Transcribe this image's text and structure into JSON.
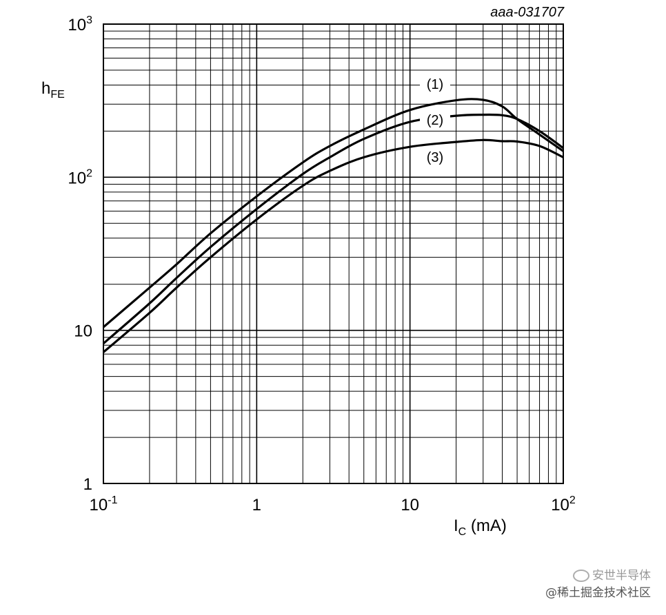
{
  "reference_code": "aaa-031707",
  "watermark": {
    "line1": "安世半导体",
    "line2": "@稀土掘金技术社区"
  },
  "chart_data": {
    "type": "line",
    "xscale": "log",
    "yscale": "log",
    "xlim": [
      0.1,
      100
    ],
    "ylim": [
      1,
      1000
    ],
    "grid": true,
    "xlabel": {
      "main": "I",
      "sub": "C",
      "unit": " (mA)"
    },
    "ylabel": {
      "main": "h",
      "sub": "FE"
    },
    "xticks": [
      {
        "value": 0.1,
        "base": "10",
        "exp": "-1"
      },
      {
        "value": 1,
        "base": "1",
        "exp": ""
      },
      {
        "value": 10,
        "base": "10",
        "exp": ""
      },
      {
        "value": 100,
        "base": "10",
        "exp": "2"
      }
    ],
    "yticks": [
      {
        "value": 1,
        "base": "1",
        "exp": ""
      },
      {
        "value": 10,
        "base": "10",
        "exp": ""
      },
      {
        "value": 100,
        "base": "10",
        "exp": "2"
      },
      {
        "value": 1000,
        "base": "10",
        "exp": "3"
      }
    ],
    "series": [
      {
        "name": "(1)",
        "x": [
          0.1,
          0.2,
          0.3,
          0.5,
          1,
          2,
          3,
          5,
          10,
          20,
          30,
          40,
          50,
          70,
          100
        ],
        "y": [
          10.5,
          19,
          27,
          43,
          75,
          125,
          160,
          205,
          275,
          318,
          320,
          290,
          240,
          190,
          148
        ]
      },
      {
        "name": "(2)",
        "x": [
          0.1,
          0.2,
          0.3,
          0.5,
          1,
          2,
          3,
          5,
          10,
          20,
          30,
          40,
          50,
          70,
          100
        ],
        "y": [
          8.2,
          15,
          22,
          35,
          62,
          105,
          135,
          178,
          230,
          252,
          256,
          254,
          240,
          200,
          155
        ]
      },
      {
        "name": "(3)",
        "x": [
          0.1,
          0.2,
          0.3,
          0.5,
          1,
          2,
          3,
          5,
          10,
          20,
          30,
          40,
          50,
          70,
          100
        ],
        "y": [
          7.2,
          13,
          19,
          30,
          53,
          88,
          110,
          135,
          158,
          170,
          175,
          172,
          171,
          160,
          135
        ]
      }
    ]
  }
}
